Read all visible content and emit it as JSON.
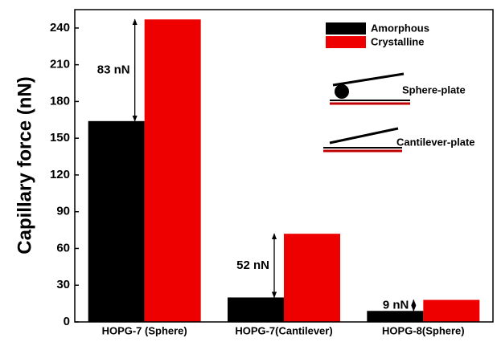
{
  "chart_data": {
    "type": "bar",
    "y_label": "Capillary  force (nN)",
    "categories": [
      "HOPG-7 (Sphere)",
      "HOPG-7(Cantilever)",
      "HOPG-8(Sphere)"
    ],
    "series": [
      {
        "name": "Amorphous",
        "color": "#000000",
        "values": [
          164,
          20,
          9
        ]
      },
      {
        "name": "Crystalline",
        "color": "#ee0000",
        "values": [
          247,
          72,
          18
        ]
      }
    ],
    "ylim": [
      0,
      255
    ],
    "yticks": [
      0,
      30,
      60,
      90,
      120,
      150,
      180,
      210,
      240
    ],
    "legend": "upper right",
    "difference_labels": [
      "83 nN",
      "52 nN",
      "9 nN"
    ],
    "insets": [
      "Sphere-plate",
      "Cantilever-plate"
    ]
  }
}
